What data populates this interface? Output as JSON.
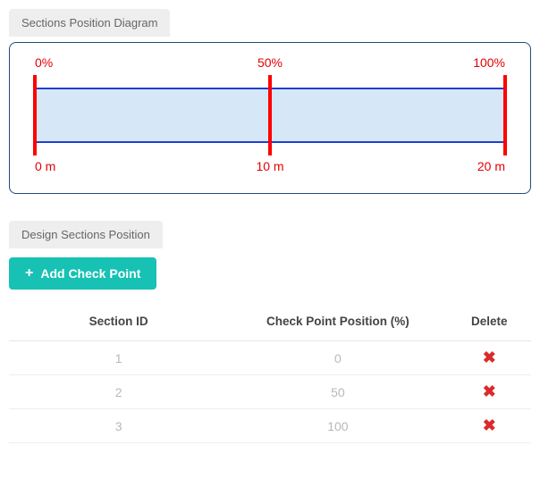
{
  "diagram": {
    "tab_label": "Sections Position Diagram",
    "beam": {
      "fill_color": "#d6e7f7",
      "border_color": "#1f3fd1",
      "line_color": "#ff0000",
      "label_color": "#e40000",
      "box_border_color": "#234a7c"
    },
    "span_m": 20,
    "checkpoints": [
      {
        "percent": 0,
        "top_label": "0%",
        "bottom_label": "0 m"
      },
      {
        "percent": 50,
        "top_label": "50%",
        "bottom_label": "10 m"
      },
      {
        "percent": 100,
        "top_label": "100%",
        "bottom_label": "20 m"
      }
    ]
  },
  "positions": {
    "tab_label": "Design Sections Position",
    "add_button_label": "Add Check Point",
    "columns": {
      "id": "Section ID",
      "pos": "Check Point Position (%)",
      "del": "Delete"
    },
    "rows": [
      {
        "id": "1",
        "pos": "0"
      },
      {
        "id": "2",
        "pos": "50"
      },
      {
        "id": "3",
        "pos": "100"
      }
    ]
  }
}
